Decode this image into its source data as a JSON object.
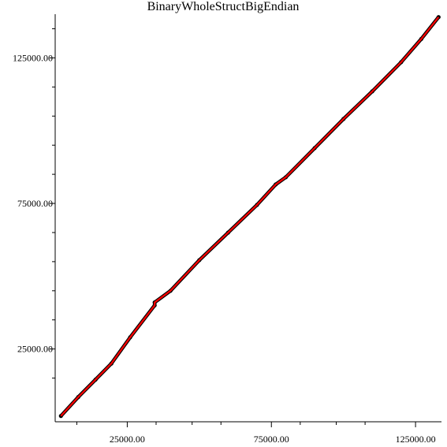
{
  "chart_data": {
    "type": "scatter",
    "title": "BinaryWholeStructBigEndian",
    "xlabel": "",
    "ylabel": "",
    "xlim": [
      0,
      134000
    ],
    "ylim": [
      0,
      140000
    ],
    "x_major_ticks": [
      25000,
      75000,
      125000
    ],
    "x_major_tick_labels": [
      "25000.00",
      "75000.00",
      "125000.00"
    ],
    "x_minor_ticks": [
      7500,
      35000,
      47500,
      57500,
      85000,
      97500,
      107500
    ],
    "y_major_ticks": [
      25000,
      75000,
      125000
    ],
    "y_major_tick_labels": [
      "25000.00",
      "75000.00",
      "125000.00"
    ],
    "y_minor_ticks": [
      15000,
      35000,
      45000,
      55000,
      65000,
      85000,
      95000,
      105000,
      115000,
      135000
    ],
    "grid": false,
    "legend": "none",
    "series": [
      {
        "color": "#000000",
        "marker": "point",
        "points": [
          [
            2000,
            2000
          ],
          [
            8000,
            8500
          ],
          [
            14000,
            14500
          ],
          [
            19500,
            20000
          ],
          [
            26000,
            29000
          ],
          [
            34500,
            40000
          ],
          [
            34500,
            41000
          ],
          [
            40000,
            45000
          ],
          [
            50000,
            55500
          ],
          [
            60000,
            65000
          ],
          [
            70000,
            74500
          ],
          [
            76500,
            81500
          ],
          [
            80000,
            84000
          ],
          [
            90000,
            94000
          ],
          [
            100000,
            104000
          ],
          [
            110000,
            113500
          ],
          [
            120000,
            123500
          ],
          [
            127000,
            131500
          ],
          [
            133000,
            139000
          ]
        ]
      },
      {
        "color": "#ff0000",
        "marker": "line",
        "points": [
          [
            2000,
            2000
          ],
          [
            8000,
            8500
          ],
          [
            14000,
            14500
          ],
          [
            19500,
            20000
          ],
          [
            26000,
            29000
          ],
          [
            34500,
            40000
          ],
          [
            34500,
            41000
          ],
          [
            40000,
            45000
          ],
          [
            50000,
            55500
          ],
          [
            60000,
            65000
          ],
          [
            70000,
            74500
          ],
          [
            76500,
            81500
          ],
          [
            80000,
            84000
          ],
          [
            90000,
            94000
          ],
          [
            100000,
            104000
          ],
          [
            110000,
            113500
          ],
          [
            120000,
            123500
          ],
          [
            127000,
            131500
          ],
          [
            133000,
            139000
          ]
        ]
      }
    ]
  }
}
